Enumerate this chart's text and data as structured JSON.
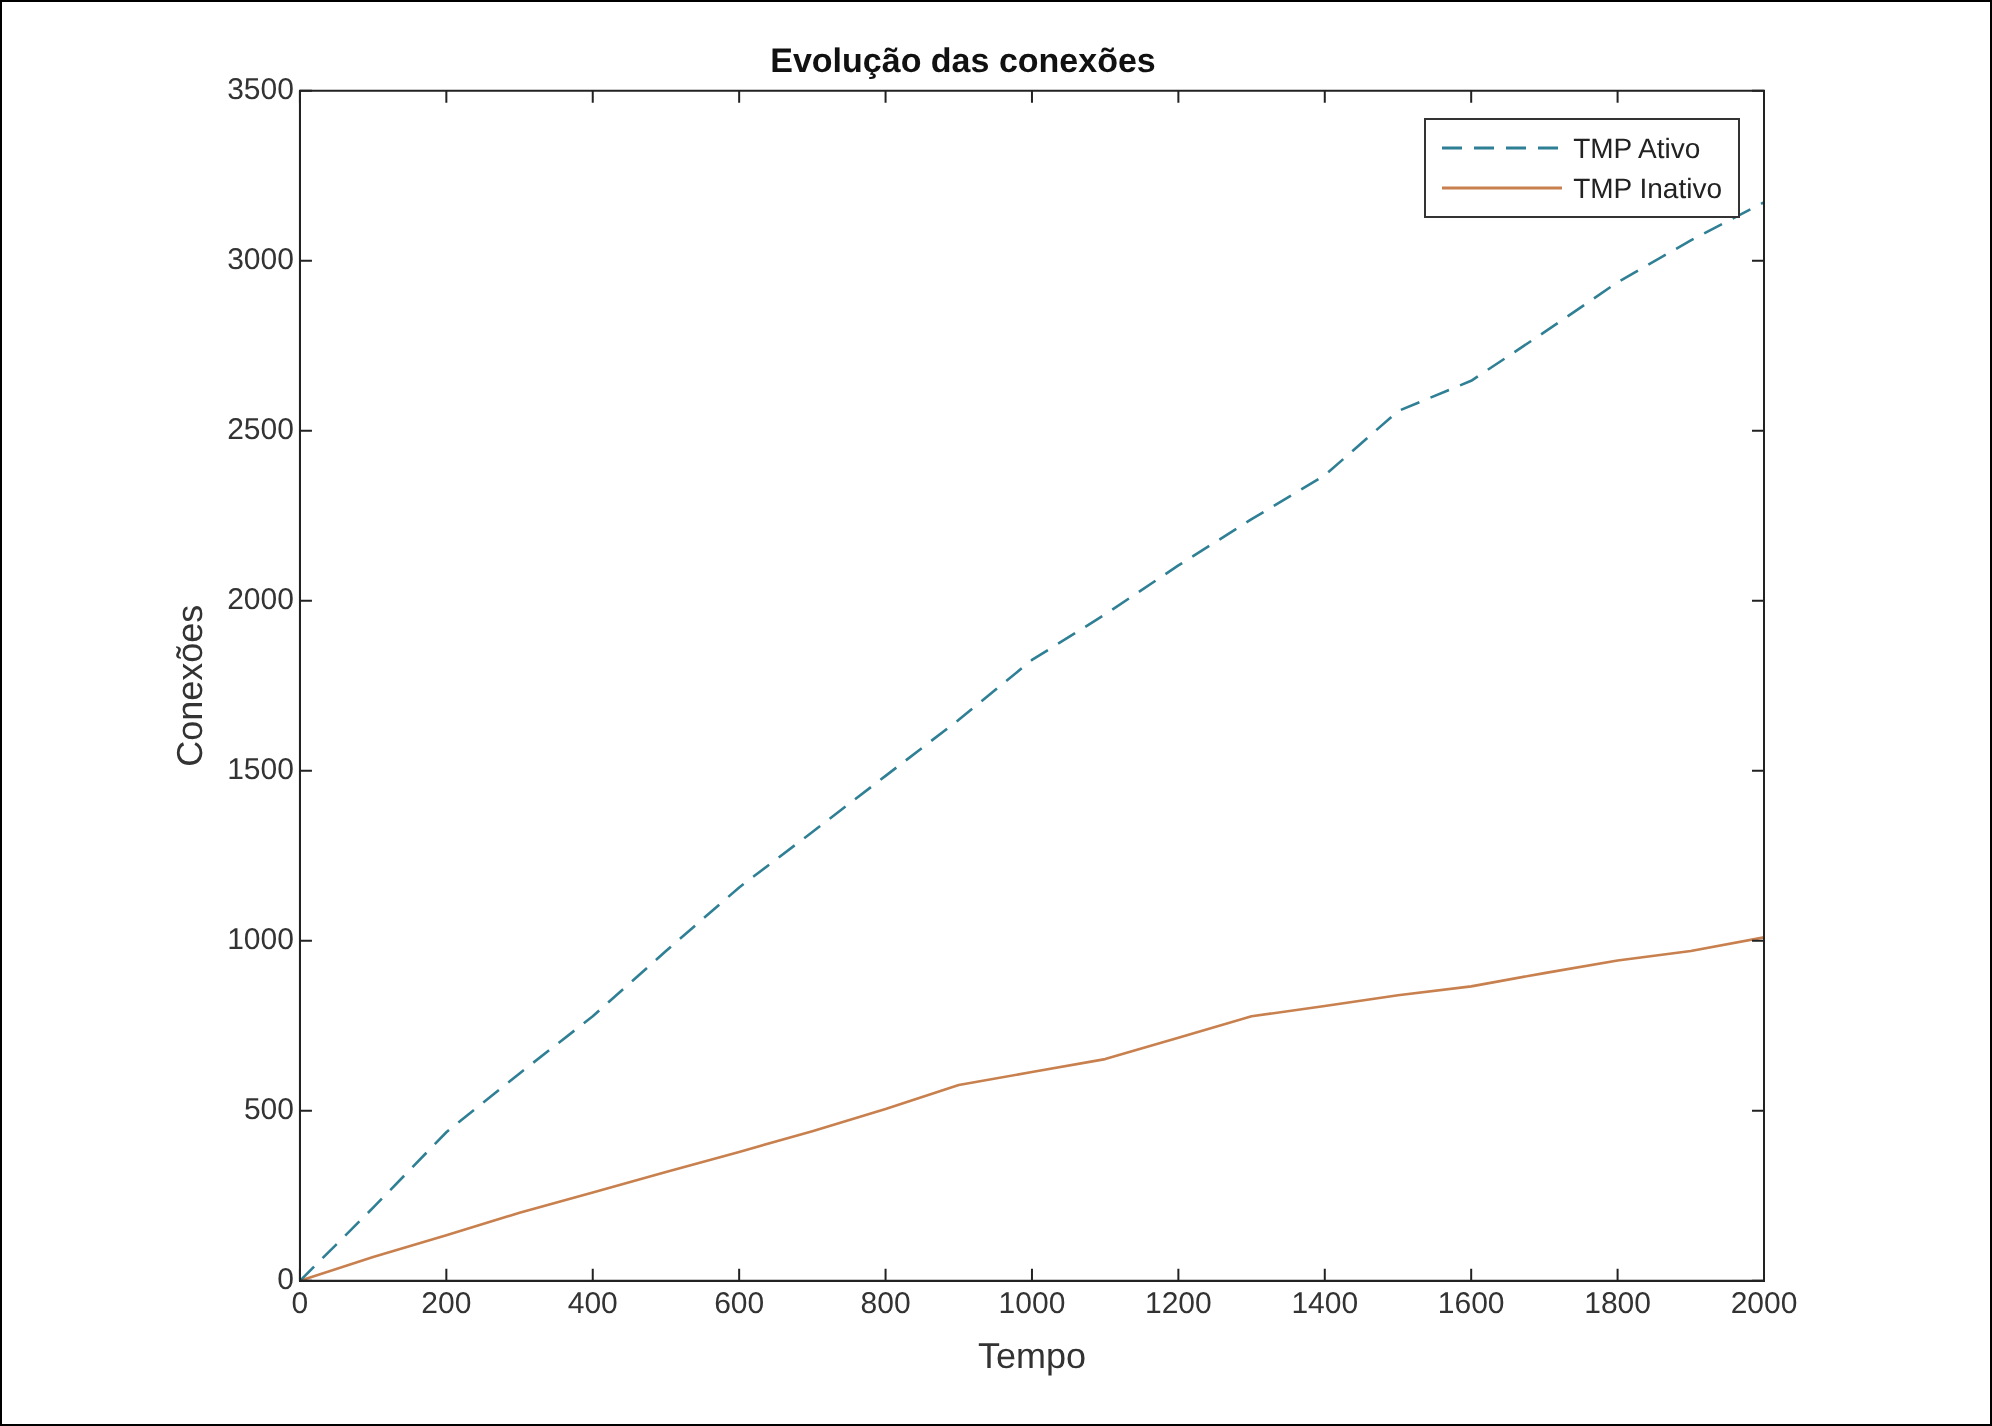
{
  "chart_data": {
    "type": "line",
    "title": "Evolução das conexões",
    "xlabel": "Tempo",
    "ylabel": "Conexões",
    "x": [
      0,
      100,
      200,
      300,
      400,
      500,
      600,
      700,
      800,
      900,
      1000,
      1100,
      1200,
      1300,
      1400,
      1500,
      1600,
      1700,
      1800,
      1900,
      2000
    ],
    "series": [
      {
        "name": "TMP Ativo",
        "color": "#2f7f95",
        "line_style": "dashed",
        "values": [
          0,
          215,
          437,
          610,
          778,
          970,
          1157,
          1320,
          1485,
          1650,
          1826,
          1960,
          2104,
          2240,
          2369,
          2558,
          2647,
          2790,
          2937,
          3060,
          3172
        ]
      },
      {
        "name": "TMP Inativo",
        "color": "#c8804e",
        "line_style": "solid",
        "values": [
          0,
          70,
          134,
          200,
          260,
          320,
          379,
          440,
          505,
          576,
          614,
          652,
          715,
          778,
          808,
          840,
          866,
          905,
          942,
          970,
          1010
        ]
      }
    ],
    "xlim": [
      0,
      2000
    ],
    "xticks": [
      0,
      200,
      400,
      600,
      800,
      1000,
      1200,
      1400,
      1600,
      1800,
      2000
    ],
    "ylim": [
      0,
      3500
    ],
    "yticks": [
      0,
      500,
      1000,
      1500,
      2000,
      2500,
      3000,
      3500
    ],
    "grid": false,
    "legend": "top right",
    "marker": "none"
  }
}
